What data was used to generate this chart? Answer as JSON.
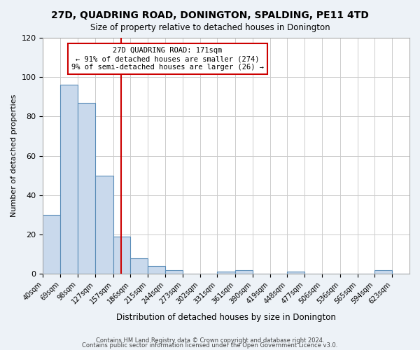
{
  "title": "27D, QUADRING ROAD, DONINGTON, SPALDING, PE11 4TD",
  "subtitle": "Size of property relative to detached houses in Donington",
  "xlabel": "Distribution of detached houses by size in Donington",
  "ylabel": "Number of detached properties",
  "bin_labels": [
    "40sqm",
    "69sqm",
    "98sqm",
    "127sqm",
    "157sqm",
    "186sqm",
    "215sqm",
    "244sqm",
    "273sqm",
    "302sqm",
    "331sqm",
    "361sqm",
    "390sqm",
    "419sqm",
    "448sqm",
    "477sqm",
    "506sqm",
    "536sqm",
    "565sqm",
    "594sqm",
    "623sqm"
  ],
  "bar_heights": [
    30,
    96,
    87,
    50,
    19,
    8,
    4,
    2,
    0,
    0,
    1,
    2,
    0,
    0,
    1,
    0,
    0,
    0,
    0,
    2,
    0
  ],
  "bar_color": "#c9d9ec",
  "bar_edge_color": "#5b8db8",
  "bin_edges": [
    40,
    69,
    98,
    127,
    157,
    186,
    215,
    244,
    273,
    302,
    331,
    361,
    390,
    419,
    448,
    477,
    506,
    536,
    565,
    594,
    623,
    652
  ],
  "property_size": 171,
  "annotation_title": "27D QUADRING ROAD: 171sqm",
  "annotation_line1": "← 91% of detached houses are smaller (274)",
  "annotation_line2": "9% of semi-detached houses are larger (26) →",
  "vline_color": "#cc0000",
  "annotation_box_color": "#ffffff",
  "annotation_box_edge": "#cc0000",
  "ylim": [
    0,
    120
  ],
  "yticks": [
    0,
    20,
    40,
    60,
    80,
    100,
    120
  ],
  "footer1": "Contains HM Land Registry data © Crown copyright and database right 2024.",
  "footer2": "Contains public sector information licensed under the Open Government Licence v3.0.",
  "background_color": "#edf2f7",
  "plot_background": "#ffffff",
  "grid_color": "#cccccc"
}
